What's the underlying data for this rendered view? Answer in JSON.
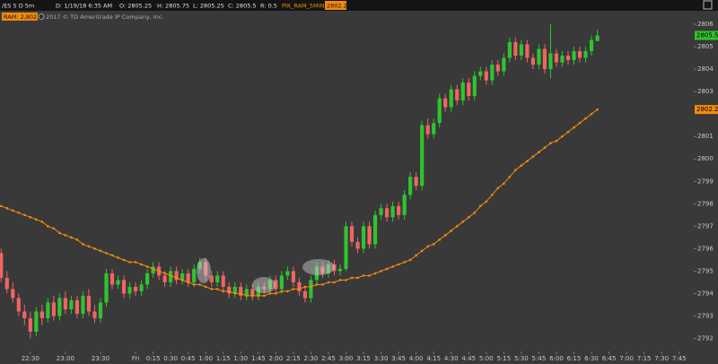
{
  "chart_data": {
    "type": "candlestick",
    "title": "/ES 5 D 5m",
    "info": [
      "D: 1/19/18 6:35 AM",
      "O: 2805.25",
      "H: 2805.75",
      "L: 2805.25",
      "C: 2805.5",
      "R: 0.5"
    ],
    "study": "PIK_RAM_5MIN",
    "badge": "RAM: 2,802.2",
    "copyright": "2017 © TD Ameritrade IP Company, Inc.",
    "up_color": "#2fc42f",
    "down_color": "#f26464",
    "ma_color": "#f28a0c",
    "ylim": [
      2791.5,
      2806.6
    ],
    "yticks": [
      2792,
      2793,
      2794,
      2795,
      2796,
      2797,
      2798,
      2799,
      2800,
      2801,
      2803,
      2804,
      2805,
      2806
    ],
    "categories": [
      null,
      null,
      null,
      null,
      null,
      "22:30",
      null,
      null,
      null,
      null,
      null,
      "23:00",
      null,
      null,
      null,
      null,
      null,
      "23:30",
      null,
      null,
      null,
      null,
      null,
      "Fri",
      null,
      null,
      "0:15",
      null,
      null,
      "0:30",
      null,
      null,
      "0:45",
      null,
      null,
      "1:00",
      null,
      null,
      "1:15",
      null,
      null,
      "1:30",
      null,
      null,
      "1:45",
      null,
      null,
      "2:00",
      null,
      null,
      "2:15",
      null,
      null,
      "2:30",
      null,
      null,
      "2:45",
      null,
      null,
      "3:00",
      null,
      null,
      "3:15",
      null,
      null,
      "3:30",
      null,
      null,
      "3:45",
      null,
      null,
      "4:00",
      null,
      null,
      "4:15",
      null,
      null,
      "4:30",
      null,
      null,
      "4:45",
      null,
      null,
      "5:00",
      null,
      null,
      "5:15",
      null,
      null,
      "5:30",
      null,
      null,
      "5:45",
      null,
      null,
      "6:00",
      null,
      null,
      "6:15",
      null,
      null,
      "6:30",
      null,
      null,
      "6:45",
      null,
      null,
      "7:00",
      null,
      null,
      "7:15",
      null,
      null,
      "7:30",
      null,
      null,
      "7:45",
      null,
      null
    ],
    "ohlc": [
      [
        2795.8,
        2796.0,
        2794.5,
        2794.7
      ],
      [
        2794.7,
        2795.0,
        2794.0,
        2794.2
      ],
      [
        2794.2,
        2794.5,
        2793.6,
        2793.8
      ],
      [
        2793.8,
        2794.0,
        2793.0,
        2793.2
      ],
      [
        2793.2,
        2793.5,
        2792.6,
        2792.9
      ],
      [
        2792.9,
        2793.2,
        2792.0,
        2792.3
      ],
      [
        2792.3,
        2793.4,
        2792.1,
        2793.2
      ],
      [
        2793.2,
        2793.5,
        2792.6,
        2792.9
      ],
      [
        2792.9,
        2793.8,
        2792.7,
        2793.6
      ],
      [
        2793.6,
        2793.9,
        2792.8,
        2793.0
      ],
      [
        2793.0,
        2794.0,
        2792.8,
        2793.8
      ],
      [
        2793.8,
        2794.1,
        2793.1,
        2793.3
      ],
      [
        2793.3,
        2793.9,
        2793.1,
        2793.7
      ],
      [
        2793.7,
        2793.9,
        2792.9,
        2793.1
      ],
      [
        2793.1,
        2794.1,
        2792.9,
        2793.9
      ],
      [
        2793.9,
        2794.2,
        2793.0,
        2793.2
      ],
      [
        2793.2,
        2793.5,
        2792.7,
        2792.9
      ],
      [
        2792.9,
        2793.8,
        2792.7,
        2793.6
      ],
      [
        2793.6,
        2795.1,
        2793.4,
        2794.9
      ],
      [
        2794.9,
        2795.1,
        2794.2,
        2794.4
      ],
      [
        2794.4,
        2794.8,
        2794.2,
        2794.6
      ],
      [
        2794.6,
        2794.8,
        2793.8,
        2794.0
      ],
      [
        2794.0,
        2794.5,
        2793.8,
        2794.3
      ],
      [
        2794.3,
        2794.5,
        2793.9,
        2794.1
      ],
      [
        2794.1,
        2794.6,
        2793.9,
        2794.4
      ],
      [
        2794.4,
        2795.1,
        2794.2,
        2794.9
      ],
      [
        2794.9,
        2795.4,
        2794.7,
        2795.2
      ],
      [
        2795.2,
        2795.4,
        2794.6,
        2794.8
      ],
      [
        2794.8,
        2795.0,
        2794.3,
        2794.5
      ],
      [
        2794.5,
        2795.2,
        2794.3,
        2795.0
      ],
      [
        2795.0,
        2795.2,
        2794.4,
        2794.6
      ],
      [
        2794.6,
        2795.1,
        2794.4,
        2794.9
      ],
      [
        2794.9,
        2795.1,
        2794.3,
        2794.5
      ],
      [
        2794.5,
        2795.3,
        2794.3,
        2795.1
      ],
      [
        2795.1,
        2795.6,
        2794.9,
        2795.4
      ],
      [
        2795.4,
        2795.6,
        2794.6,
        2794.8
      ],
      [
        2794.8,
        2795.0,
        2794.3,
        2794.5
      ],
      [
        2794.5,
        2795.0,
        2794.3,
        2794.8
      ],
      [
        2794.8,
        2795.0,
        2794.1,
        2794.3
      ],
      [
        2794.3,
        2794.5,
        2793.8,
        2794.0
      ],
      [
        2794.0,
        2794.5,
        2793.8,
        2794.3
      ],
      [
        2794.3,
        2794.5,
        2793.7,
        2793.9
      ],
      [
        2793.9,
        2794.4,
        2793.7,
        2794.2
      ],
      [
        2794.2,
        2794.4,
        2793.7,
        2793.9
      ],
      [
        2793.9,
        2794.5,
        2793.7,
        2794.3
      ],
      [
        2794.3,
        2794.5,
        2794.0,
        2794.2
      ],
      [
        2794.2,
        2794.8,
        2794.0,
        2794.6
      ],
      [
        2794.6,
        2794.8,
        2794.0,
        2794.2
      ],
      [
        2794.2,
        2795.0,
        2794.0,
        2794.8
      ],
      [
        2794.8,
        2795.2,
        2794.6,
        2795.0
      ],
      [
        2795.0,
        2795.2,
        2794.3,
        2794.5
      ],
      [
        2794.5,
        2794.7,
        2793.9,
        2794.1
      ],
      [
        2794.1,
        2794.3,
        2793.6,
        2793.8
      ],
      [
        2793.8,
        2794.8,
        2793.6,
        2794.6
      ],
      [
        2794.6,
        2795.4,
        2794.4,
        2795.2
      ],
      [
        2795.2,
        2795.4,
        2794.7,
        2794.9
      ],
      [
        2794.9,
        2795.5,
        2794.7,
        2795.3
      ],
      [
        2795.3,
        2795.5,
        2794.8,
        2795.0
      ],
      [
        2795.0,
        2795.3,
        2794.8,
        2795.1
      ],
      [
        2795.1,
        2797.2,
        2795.0,
        2797.0
      ],
      [
        2797.0,
        2797.2,
        2796.1,
        2796.3
      ],
      [
        2796.3,
        2796.5,
        2795.8,
        2796.0
      ],
      [
        2796.0,
        2797.2,
        2795.8,
        2797.0
      ],
      [
        2797.0,
        2797.2,
        2796.0,
        2796.2
      ],
      [
        2796.2,
        2797.7,
        2796.0,
        2797.5
      ],
      [
        2797.5,
        2798.0,
        2797.3,
        2797.8
      ],
      [
        2797.8,
        2798.0,
        2797.2,
        2797.4
      ],
      [
        2797.4,
        2798.1,
        2797.2,
        2797.9
      ],
      [
        2797.9,
        2798.1,
        2797.3,
        2797.5
      ],
      [
        2797.5,
        2798.6,
        2797.3,
        2798.4
      ],
      [
        2798.4,
        2799.4,
        2798.2,
        2799.2
      ],
      [
        2799.2,
        2799.4,
        2798.6,
        2798.8
      ],
      [
        2798.8,
        2801.7,
        2798.6,
        2801.5
      ],
      [
        2801.5,
        2801.8,
        2800.9,
        2801.1
      ],
      [
        2801.1,
        2801.8,
        2800.9,
        2801.6
      ],
      [
        2801.6,
        2802.9,
        2801.4,
        2802.7
      ],
      [
        2802.7,
        2802.9,
        2802.1,
        2802.3
      ],
      [
        2802.3,
        2803.3,
        2802.1,
        2803.1
      ],
      [
        2803.1,
        2803.3,
        2802.4,
        2802.6
      ],
      [
        2802.6,
        2803.6,
        2802.4,
        2803.4
      ],
      [
        2803.4,
        2803.6,
        2802.6,
        2802.8
      ],
      [
        2802.8,
        2803.9,
        2802.6,
        2803.7
      ],
      [
        2803.7,
        2804.1,
        2803.5,
        2803.9
      ],
      [
        2803.9,
        2804.1,
        2803.3,
        2803.5
      ],
      [
        2803.5,
        2804.4,
        2803.3,
        2804.2
      ],
      [
        2804.2,
        2804.4,
        2803.7,
        2803.9
      ],
      [
        2803.9,
        2804.7,
        2803.7,
        2804.5
      ],
      [
        2804.5,
        2805.4,
        2804.3,
        2805.2
      ],
      [
        2805.2,
        2805.4,
        2804.4,
        2804.6
      ],
      [
        2804.6,
        2805.3,
        2804.4,
        2805.1
      ],
      [
        2805.1,
        2805.3,
        2804.3,
        2804.5
      ],
      [
        2804.5,
        2804.7,
        2804.0,
        2804.2
      ],
      [
        2804.2,
        2805.1,
        2804.0,
        2804.9
      ],
      [
        2804.9,
        2805.1,
        2803.8,
        2804.0
      ],
      [
        2804.0,
        2806.0,
        2803.6,
        2804.7
      ],
      [
        2804.7,
        2804.9,
        2804.1,
        2804.3
      ],
      [
        2804.3,
        2804.8,
        2804.1,
        2804.6
      ],
      [
        2804.6,
        2804.8,
        2804.2,
        2804.4
      ],
      [
        2804.4,
        2805.0,
        2804.2,
        2804.8
      ],
      [
        2804.8,
        2805.0,
        2804.3,
        2804.5
      ],
      [
        2804.5,
        2805.0,
        2804.3,
        2804.8
      ],
      [
        2804.8,
        2805.5,
        2804.6,
        2805.3
      ],
      [
        2805.25,
        2805.75,
        2805.25,
        2805.5
      ],
      null,
      null,
      null,
      null,
      null,
      null,
      null,
      null,
      null,
      null,
      null,
      null,
      null,
      null,
      null,
      null
    ],
    "ma": [
      2797.9,
      2797.8,
      2797.7,
      2797.6,
      2797.5,
      2797.4,
      2797.3,
      2797.2,
      2797.0,
      2796.9,
      2796.7,
      2796.6,
      2796.5,
      2796.4,
      2796.2,
      2796.1,
      2796.0,
      2795.9,
      2795.8,
      2795.7,
      2795.6,
      2795.5,
      2795.4,
      2795.4,
      2795.3,
      2795.2,
      2795.1,
      2795.0,
      2794.9,
      2794.8,
      2794.7,
      2794.6,
      2794.5,
      2794.4,
      2794.4,
      2794.3,
      2794.2,
      2794.2,
      2794.1,
      2794.1,
      2794.0,
      2794.0,
      2793.9,
      2793.9,
      2793.9,
      2793.9,
      2794.0,
      2794.0,
      2794.1,
      2794.1,
      2794.2,
      2794.2,
      2794.3,
      2794.3,
      2794.4,
      2794.4,
      2794.5,
      2794.5,
      2794.6,
      2794.6,
      2794.7,
      2794.7,
      2794.8,
      2794.8,
      2794.9,
      2795.0,
      2795.1,
      2795.2,
      2795.3,
      2795.4,
      2795.5,
      2795.7,
      2795.9,
      2796.1,
      2796.2,
      2796.4,
      2796.6,
      2796.8,
      2797.0,
      2797.2,
      2797.4,
      2797.6,
      2797.9,
      2798.1,
      2798.4,
      2798.7,
      2798.9,
      2799.2,
      2799.5,
      2799.7,
      2799.9,
      2800.1,
      2800.3,
      2800.5,
      2800.7,
      2800.8,
      2801.0,
      2801.2,
      2801.4,
      2801.6,
      2801.8,
      2802.0,
      2802.2,
      null,
      null,
      null,
      null,
      null,
      null,
      null,
      null,
      null,
      null,
      null,
      null,
      null,
      null,
      null,
      null
    ]
  }
}
